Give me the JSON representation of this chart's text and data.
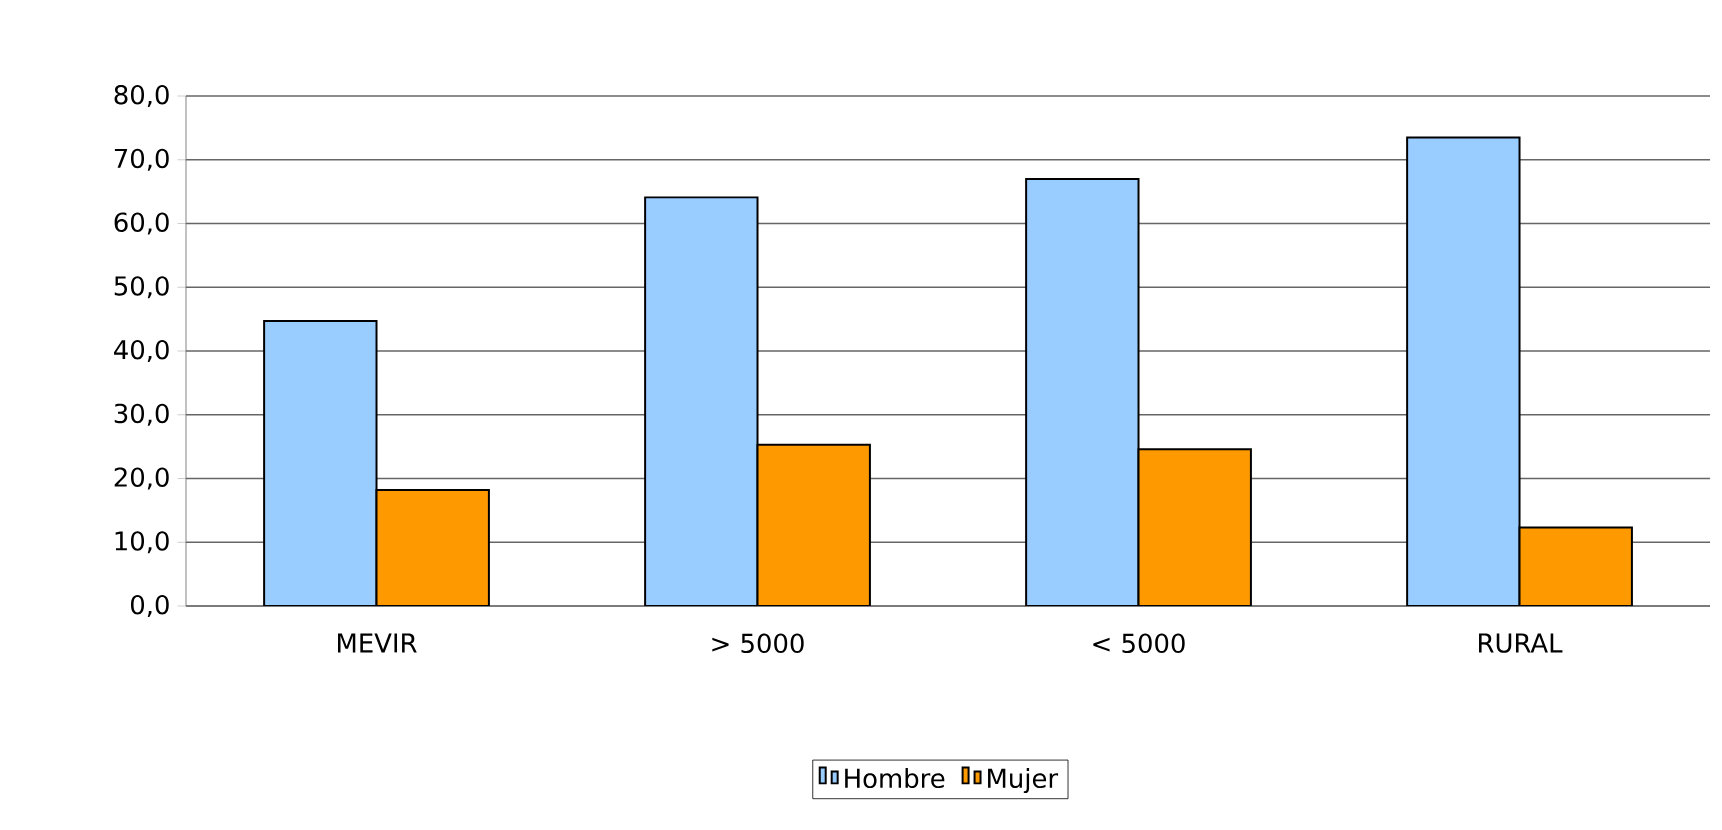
{
  "chart_data": {
    "type": "bar",
    "categories": [
      "MEVIR",
      "> 5000",
      "< 5000",
      "RURAL"
    ],
    "series": [
      {
        "name": "Hombre",
        "color": "#99ccff",
        "values": [
          44.7,
          64.1,
          67.0,
          73.5
        ]
      },
      {
        "name": "Mujer",
        "color": "#ff9900",
        "values": [
          18.2,
          25.3,
          24.6,
          12.3
        ]
      }
    ],
    "ylim": [
      0,
      80
    ],
    "yticks": [
      {
        "value": 0,
        "label": "0,0"
      },
      {
        "value": 10,
        "label": "10,0"
      },
      {
        "value": 20,
        "label": "20,0"
      },
      {
        "value": 30,
        "label": "30,0"
      },
      {
        "value": 40,
        "label": "40,0"
      },
      {
        "value": 50,
        "label": "50,0"
      },
      {
        "value": 60,
        "label": "60,0"
      },
      {
        "value": 70,
        "label": "70,0"
      },
      {
        "value": 80,
        "label": "80,0"
      }
    ],
    "grid": "y",
    "legend": "bottom"
  }
}
